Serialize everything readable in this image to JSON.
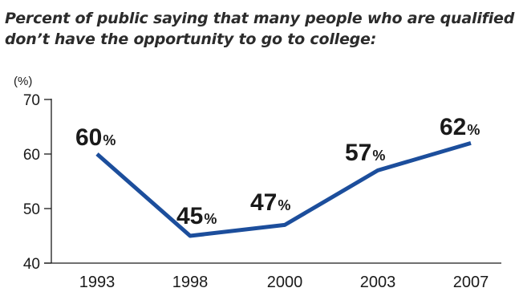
{
  "title_lines": [
    "Percent of public saying that many people who are qualified",
    "don’t have the opportunity to go to college:"
  ],
  "chart_data": {
    "type": "line",
    "title": "Percent of public saying that many people who are qualified don’t have the opportunity to go to college:",
    "y_unit_label": "(%)",
    "x": [
      "1993",
      "1998",
      "2000",
      "2003",
      "2007"
    ],
    "series": [
      {
        "values": [
          60,
          45,
          47,
          57,
          62
        ]
      }
    ],
    "data_labels": [
      {
        "value": "60",
        "suffix": "%"
      },
      {
        "value": "45",
        "suffix": "%"
      },
      {
        "value": "47",
        "suffix": "%"
      },
      {
        "value": "57",
        "suffix": "%"
      },
      {
        "value": "62",
        "suffix": "%"
      }
    ],
    "y_ticks": [
      "70",
      "60",
      "50",
      "40"
    ],
    "ylim": [
      40,
      70
    ],
    "grid": false,
    "line_color": "#1c4e9c"
  }
}
